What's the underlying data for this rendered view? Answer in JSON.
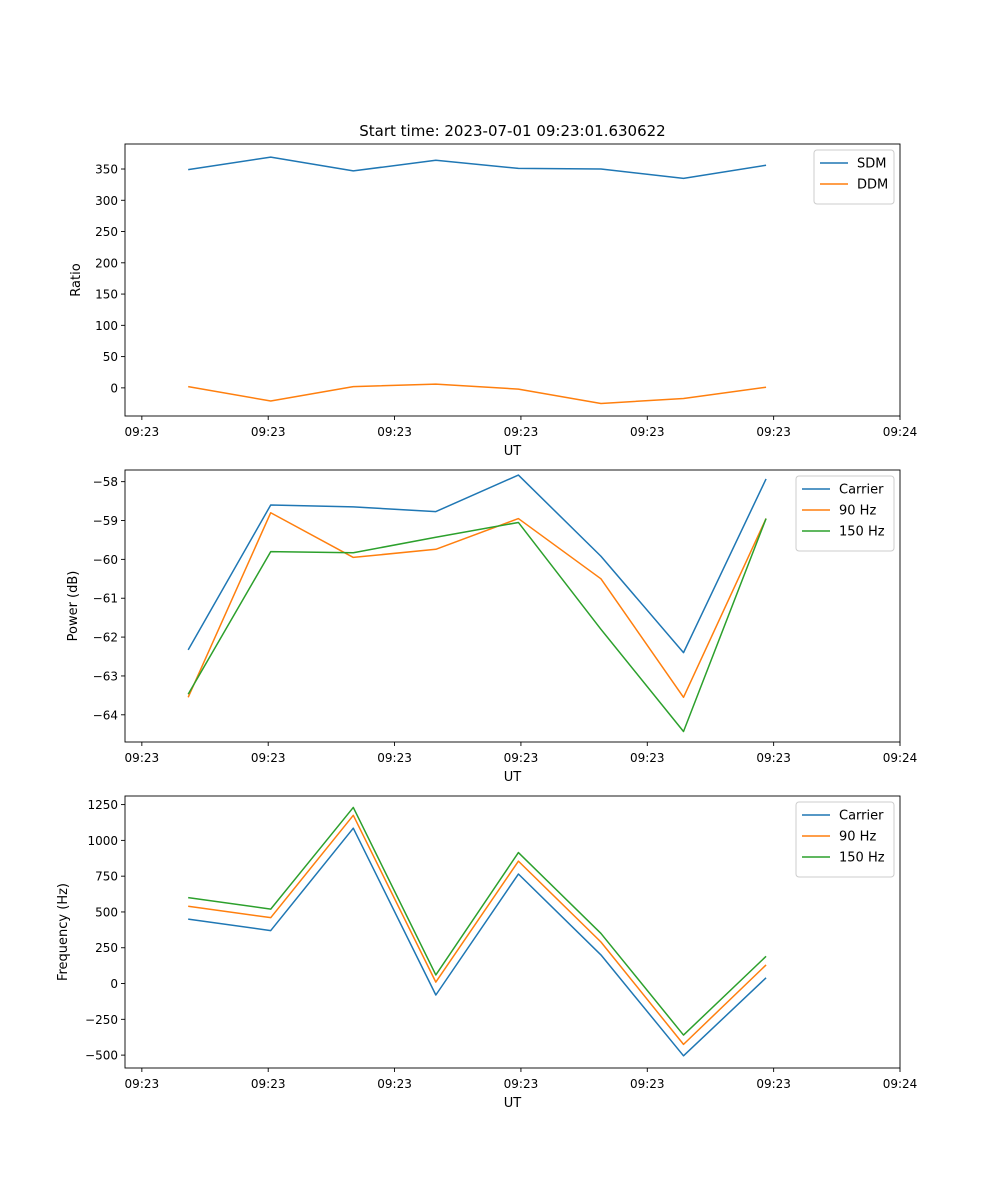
{
  "figure_title": "Start time: 2023-07-01 09:23:01.630622",
  "chart_data": [
    {
      "type": "line",
      "id": "ratio",
      "title": "Start time: 2023-07-01 09:23:01.630622",
      "xlabel": "UT",
      "ylabel": "Ratio",
      "xlim": [
        0,
        9.2
      ],
      "ylim": [
        -45,
        390
      ],
      "x": [
        0.75,
        1.73,
        2.71,
        3.69,
        4.67,
        5.65,
        6.63,
        7.61
      ],
      "xticks": [
        0.2,
        1.7,
        3.2,
        4.7,
        6.2,
        7.7,
        9.2
      ],
      "xtick_labels": [
        "09:23",
        "09:23",
        "09:23",
        "09:23",
        "09:23",
        "09:23",
        "09:24"
      ],
      "yticks": [
        0,
        50,
        100,
        150,
        200,
        250,
        300,
        350
      ],
      "ytick_labels": [
        "0",
        "50",
        "100",
        "150",
        "200",
        "250",
        "300",
        "350"
      ],
      "legend_position": "top-right",
      "series": [
        {
          "name": "SDM",
          "color": "#1f77b4",
          "values": [
            349,
            369,
            347,
            364,
            351,
            350,
            335,
            356
          ]
        },
        {
          "name": "DDM",
          "color": "#ff7f0e",
          "values": [
            2,
            -21,
            2,
            6,
            -2,
            -25,
            -17,
            1
          ]
        }
      ]
    },
    {
      "type": "line",
      "id": "power",
      "title": "",
      "xlabel": "UT",
      "ylabel": "Power (dB)",
      "xlim": [
        0,
        9.2
      ],
      "ylim": [
        -64.7,
        -57.7
      ],
      "x": [
        0.75,
        1.73,
        2.71,
        3.69,
        4.67,
        5.65,
        6.63,
        7.61
      ],
      "xticks": [
        0.2,
        1.7,
        3.2,
        4.7,
        6.2,
        7.7,
        9.2
      ],
      "xtick_labels": [
        "09:23",
        "09:23",
        "09:23",
        "09:23",
        "09:23",
        "09:23",
        "09:24"
      ],
      "yticks": [
        -64,
        -63,
        -62,
        -61,
        -60,
        -59,
        -58
      ],
      "ytick_labels": [
        "−64",
        "−63",
        "−62",
        "−61",
        "−60",
        "−59",
        "−58"
      ],
      "legend_position": "top-right",
      "series": [
        {
          "name": "Carrier",
          "color": "#1f77b4",
          "values": [
            -62.33,
            -58.6,
            -58.65,
            -58.77,
            -57.83,
            -59.92,
            -62.4,
            -57.93
          ]
        },
        {
          "name": "90 Hz",
          "color": "#ff7f0e",
          "values": [
            -63.55,
            -58.8,
            -59.95,
            -59.74,
            -58.95,
            -60.5,
            -63.55,
            -58.95
          ]
        },
        {
          "name": "150 Hz",
          "color": "#2ca02c",
          "values": [
            -63.47,
            -59.8,
            -59.83,
            -59.43,
            -59.05,
            -61.8,
            -64.43,
            -58.95
          ]
        }
      ]
    },
    {
      "type": "line",
      "id": "frequency",
      "title": "",
      "xlabel": "UT",
      "ylabel": "Frequency (Hz)",
      "xlim": [
        0,
        9.2
      ],
      "ylim": [
        -590,
        1310
      ],
      "x": [
        0.75,
        1.73,
        2.71,
        3.69,
        4.67,
        5.65,
        6.63,
        7.61
      ],
      "xticks": [
        0.2,
        1.7,
        3.2,
        4.7,
        6.2,
        7.7,
        9.2
      ],
      "xtick_labels": [
        "09:23",
        "09:23",
        "09:23",
        "09:23",
        "09:23",
        "09:23",
        "09:24"
      ],
      "yticks": [
        -500,
        -250,
        0,
        250,
        500,
        750,
        1000,
        1250
      ],
      "ytick_labels": [
        "−500",
        "−250",
        "0",
        "250",
        "500",
        "750",
        "1000",
        "1250"
      ],
      "legend_position": "top-right",
      "series": [
        {
          "name": "Carrier",
          "color": "#1f77b4",
          "values": [
            450,
            370,
            1085,
            -80,
            765,
            200,
            -505,
            40
          ]
        },
        {
          "name": "90 Hz",
          "color": "#ff7f0e",
          "values": [
            540,
            460,
            1175,
            10,
            855,
            290,
            -425,
            130
          ]
        },
        {
          "name": "150 Hz",
          "color": "#2ca02c",
          "values": [
            600,
            520,
            1230,
            60,
            915,
            350,
            -360,
            190
          ]
        }
      ]
    }
  ]
}
